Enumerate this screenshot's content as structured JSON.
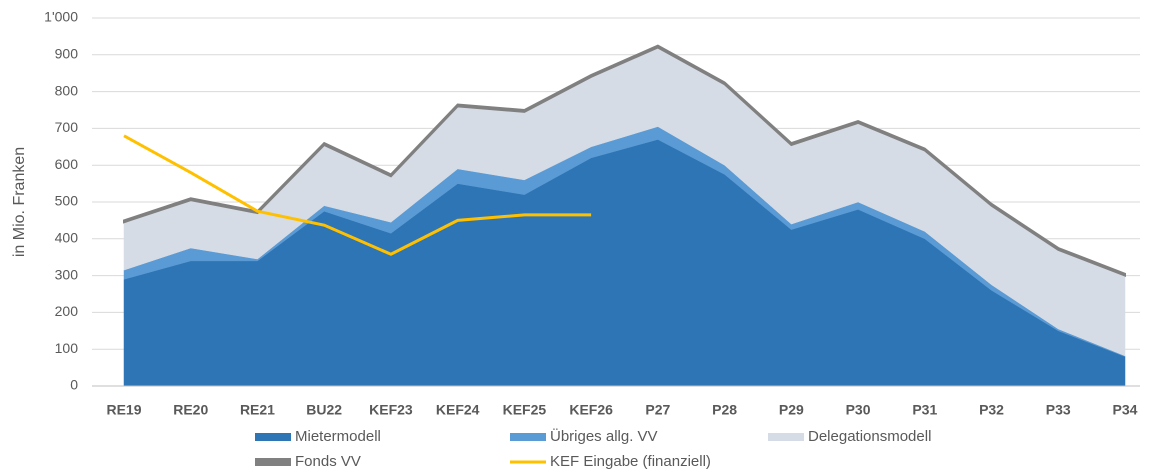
{
  "chart_data": {
    "type": "stacked_area_line",
    "y_label": "in Mio. Franken",
    "categories": [
      "RE19",
      "RE20",
      "RE21",
      "BU22",
      "KEF23",
      "KEF24",
      "KEF25",
      "KEF26",
      "P27",
      "P28",
      "P29",
      "P30",
      "P31",
      "P32",
      "P33",
      "P34"
    ],
    "series": [
      {
        "name": "Mietermodell",
        "color": "#2e75b6",
        "kind": "area",
        "values": [
          290,
          340,
          340,
          475,
          415,
          550,
          520,
          620,
          670,
          575,
          425,
          480,
          400,
          260,
          150,
          80
        ]
      },
      {
        "name": "Übriges allg. VV",
        "color": "#5b9bd5",
        "kind": "area",
        "values": [
          25,
          35,
          5,
          15,
          30,
          40,
          40,
          30,
          35,
          25,
          15,
          20,
          20,
          15,
          5,
          2
        ]
      },
      {
        "name": "Delegationsmodell",
        "color": "#d6dce5",
        "kind": "area",
        "values": [
          130,
          130,
          125,
          165,
          125,
          170,
          185,
          190,
          215,
          220,
          215,
          215,
          220,
          215,
          215,
          218
        ]
      },
      {
        "name": "Fonds VV",
        "color": "#808080",
        "kind": "area",
        "values": [
          5,
          5,
          5,
          5,
          5,
          5,
          5,
          5,
          5,
          5,
          5,
          5,
          5,
          5,
          5,
          5
        ]
      },
      {
        "name": "KEF Eingabe (finanziell)",
        "color": "#ffc000",
        "kind": "line",
        "values": [
          680,
          580,
          475,
          437,
          358,
          450,
          465,
          465,
          null,
          null,
          null,
          null,
          null,
          null,
          null,
          null
        ]
      }
    ],
    "ylim": [
      0,
      1000
    ],
    "yticks": [
      0,
      100,
      200,
      300,
      400,
      500,
      600,
      700,
      800,
      900,
      {
        "value": 1000,
        "label": "1'000"
      }
    ],
    "grid": true
  }
}
